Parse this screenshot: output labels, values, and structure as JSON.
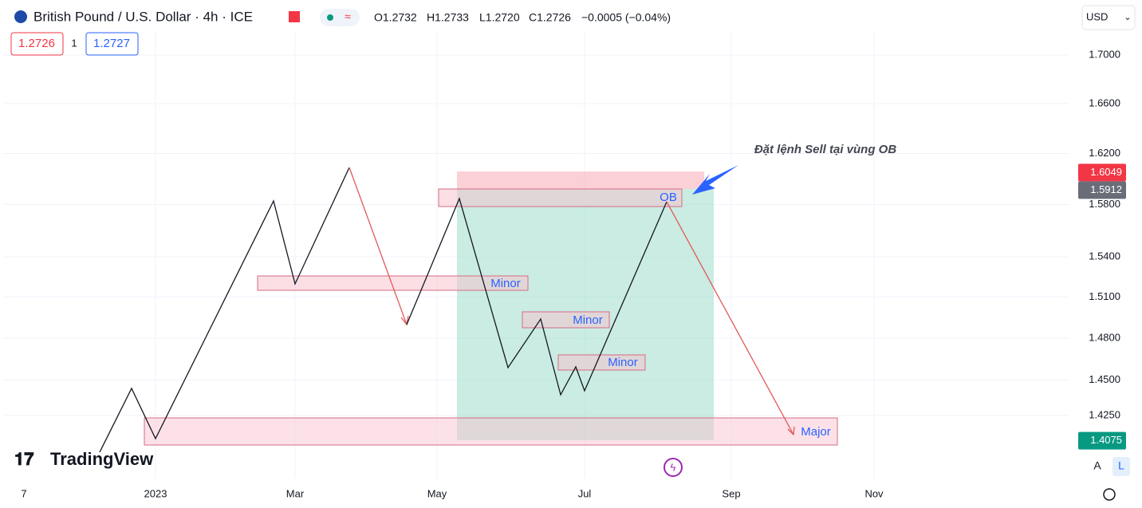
{
  "header": {
    "symbol": "British Pound / U.S. Dollar · 4h · ICE",
    "ohlc": [
      "O1.2732",
      "H1.2733",
      "L1.2720",
      "C1.2726",
      "−0.0005 (−0.04%)"
    ],
    "sell_price": "1.2726",
    "spread": "1",
    "buy_price": "1.2727",
    "currency": "USD"
  },
  "chart_data": {
    "type": "line",
    "log_scale": true,
    "ylim": [
      1.3817,
      1.7464
    ],
    "yticks": [
      {
        "value": 1.7,
        "label": "1.7000"
      },
      {
        "value": 1.66,
        "label": "1.6600"
      },
      {
        "value": 1.62,
        "label": "1.6200"
      },
      {
        "value": 1.58,
        "label": "1.5800"
      },
      {
        "value": 1.54,
        "label": "1.5400"
      },
      {
        "value": 1.51,
        "label": "1.5100"
      },
      {
        "value": 1.48,
        "label": "1.4800"
      },
      {
        "value": 1.45,
        "label": "1.4500"
      },
      {
        "value": 1.425,
        "label": "1.4250"
      }
    ],
    "price_labels": [
      {
        "value": 1.6049,
        "color": "#f23645"
      },
      {
        "value": 1.5912,
        "color": "#6a6d78"
      },
      {
        "value": 1.4075,
        "color": "#089981"
      }
    ],
    "xticks": [
      "7",
      "2023",
      "Mar",
      "May",
      "Jul",
      "Sep",
      "Nov"
    ],
    "annotations": {
      "sell": "Đặt lệnh Sell tại vùng OB",
      "ob": "OB",
      "minor": [
        "Minor",
        "Minor",
        "Minor"
      ],
      "major": "Major"
    },
    "logo": "TradingView",
    "buttons": [
      "A",
      "L"
    ]
  }
}
